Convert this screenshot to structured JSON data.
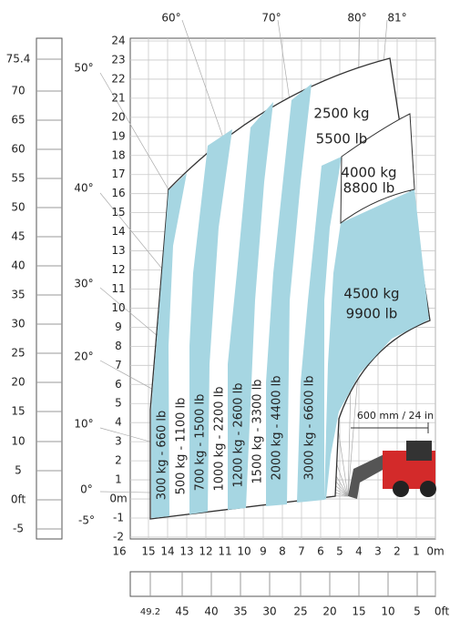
{
  "angles": [
    "60°",
    "70°",
    "80°",
    "81°",
    "50°",
    "40°",
    "30°",
    "20°",
    "10°",
    "0°",
    "-5°"
  ],
  "heights_m": [
    "24",
    "23",
    "22",
    "21",
    "20",
    "19",
    "18",
    "17",
    "16",
    "15",
    "14",
    "13",
    "12",
    "11",
    "10",
    "9",
    "8",
    "7",
    "6",
    "5",
    "4",
    "3",
    "2",
    "1",
    "0m",
    "-1",
    "-2"
  ],
  "heights_ft": [
    "75.4",
    "70",
    "65",
    "60",
    "55",
    "50",
    "45",
    "40",
    "35",
    "30",
    "25",
    "20",
    "15",
    "10",
    "5",
    "0ft",
    "-5"
  ],
  "distances_m": [
    "16",
    "15",
    "14",
    "13",
    "12",
    "11",
    "10",
    "9",
    "8",
    "7",
    "6",
    "5",
    "4",
    "3",
    "2",
    "1",
    "0m"
  ],
  "distances_ft": [
    "49.2",
    "45",
    "40",
    "35",
    "30",
    "25",
    "20",
    "15",
    "10",
    "5",
    "0ft"
  ],
  "bands": [
    "300 kg - 660 lb",
    "500 kg - 1100 lb",
    "700 kg - 1500 lb",
    "1000 kg - 2200 lb",
    "1200 kg - 2600 lb",
    "1500 kg - 3300 lb",
    "2000 kg - 4400 lb",
    "3000 kg - 6600 lb"
  ],
  "zones": [
    {
      "kg": "2500 kg",
      "lb": "5500 lb"
    },
    {
      "kg": "4000 kg",
      "lb": "8800 lb"
    },
    {
      "kg": "4500 kg",
      "lb": "9900 lb"
    }
  ],
  "reach_note": "600 mm / 24 in"
}
